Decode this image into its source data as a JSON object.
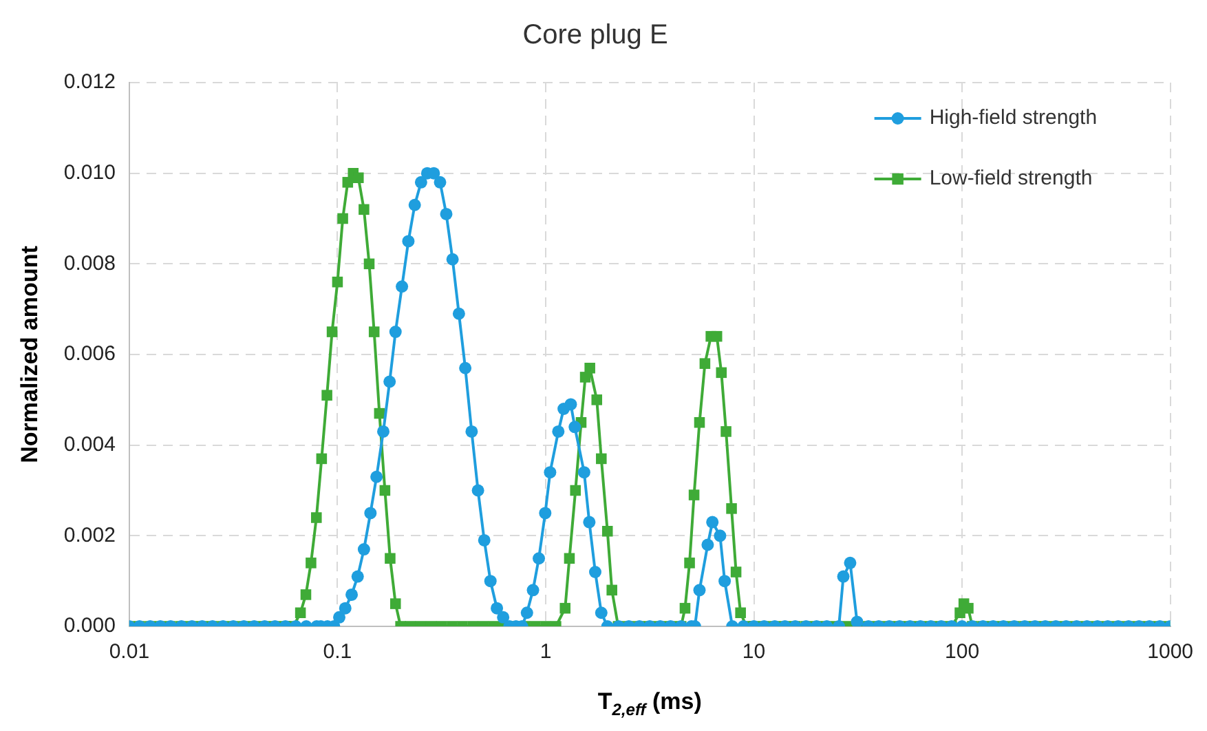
{
  "chart_data": {
    "type": "line",
    "title": "Core plug E",
    "xlabel": "T$_{2,eff}$ (ms)",
    "ylabel": "Normalized amount",
    "log": "x",
    "grid": true,
    "legend": "top right",
    "xlim": [
      0.01,
      1000
    ],
    "xticks": [
      0.01,
      0.1,
      1,
      10,
      100,
      1000
    ],
    "ylim": [
      0,
      0.012
    ],
    "yticks": [
      {
        "value": 0,
        "label": "0.000"
      },
      {
        "value": 0.002,
        "label": "0.002"
      },
      {
        "value": 0.004,
        "label": "0.004"
      },
      {
        "value": 0.006,
        "label": "0.006"
      },
      {
        "value": 0.008,
        "label": "0.008"
      },
      {
        "value": 0.01,
        "label": "0.010"
      },
      {
        "value": 0.012,
        "label": "0.012"
      }
    ],
    "series": [
      {
        "name": "High-field strength",
        "color": "#1f9ede",
        "marker": "circle",
        "x": [
          0.01,
          0.0112,
          0.0126,
          0.0141,
          0.0158,
          0.0178,
          0.02,
          0.0224,
          0.0251,
          0.0282,
          0.0316,
          0.0355,
          0.0398,
          0.0447,
          0.0501,
          0.0562,
          0.0631,
          0.0708,
          0.0794,
          0.0832,
          0.0895,
          0.0962,
          0.102,
          0.109,
          0.117,
          0.125,
          0.134,
          0.144,
          0.154,
          0.166,
          0.178,
          0.19,
          0.204,
          0.219,
          0.235,
          0.252,
          0.27,
          0.29,
          0.311,
          0.333,
          0.357,
          0.383,
          0.411,
          0.441,
          0.473,
          0.507,
          0.543,
          0.583,
          0.625,
          0.67,
          0.72,
          0.77,
          0.813,
          0.869,
          0.927,
          0.995,
          1.05,
          1.15,
          1.22,
          1.32,
          1.38,
          1.53,
          1.62,
          1.73,
          1.85,
          1.98,
          2.24,
          2.51,
          2.82,
          3.16,
          3.55,
          3.98,
          4.47,
          5.01,
          5.21,
          5.48,
          6,
          6.32,
          6.88,
          7.24,
          7.88,
          8.91,
          10,
          11.2,
          12.6,
          14.1,
          15.8,
          17.8,
          20,
          22.4,
          25.6,
          26.9,
          29,
          31.3,
          35.5,
          39.8,
          44.7,
          50.1,
          56.2,
          63.1,
          70.8,
          79.4,
          89.1,
          100,
          112,
          126,
          141,
          158,
          178,
          200,
          224,
          251,
          282,
          316,
          355,
          398,
          447,
          501,
          562,
          631,
          708,
          794,
          891,
          1000
        ],
        "values": [
          0,
          0,
          0,
          0,
          0,
          0,
          0,
          0,
          0,
          0,
          0,
          0,
          0,
          0,
          0,
          0,
          0,
          0,
          0,
          0,
          0,
          0,
          0.0002,
          0.0004,
          0.0007,
          0.0011,
          0.0017,
          0.0025,
          0.0033,
          0.0043,
          0.0054,
          0.0065,
          0.0075,
          0.0085,
          0.0093,
          0.0098,
          0.01,
          0.01,
          0.0098,
          0.0091,
          0.0081,
          0.0069,
          0.0057,
          0.0043,
          0.003,
          0.0019,
          0.001,
          0.0004,
          0.0002,
          0,
          0,
          0,
          0.0003,
          0.0008,
          0.0015,
          0.0025,
          0.0034,
          0.0043,
          0.0048,
          0.0049,
          0.0044,
          0.0034,
          0.0023,
          0.0012,
          0.0003,
          0,
          0,
          0,
          0,
          0,
          0,
          0,
          0,
          0,
          0,
          0.0008,
          0.0018,
          0.0023,
          0.002,
          0.001,
          0,
          0,
          0,
          0,
          0,
          0,
          0,
          0,
          0,
          0,
          0,
          0.0011,
          0.0014,
          0.0001,
          0,
          0,
          0,
          0,
          0,
          0,
          0,
          0,
          0,
          0,
          0,
          0,
          0,
          0,
          0,
          0,
          0,
          0,
          0,
          0,
          0,
          0,
          0,
          0,
          0,
          0,
          0,
          0,
          0,
          0
        ]
      },
      {
        "name": "Low-field strength",
        "color": "#3fab37",
        "marker": "square",
        "x": [
          0.01,
          0.0112,
          0.0126,
          0.0141,
          0.0158,
          0.0178,
          0.02,
          0.0224,
          0.0251,
          0.0282,
          0.0316,
          0.0355,
          0.0398,
          0.0447,
          0.0501,
          0.0562,
          0.0615,
          0.0664,
          0.0705,
          0.0746,
          0.0792,
          0.0839,
          0.089,
          0.0942,
          0.1,
          0.106,
          0.112,
          0.119,
          0.126,
          0.134,
          0.142,
          0.15,
          0.159,
          0.169,
          0.179,
          0.19,
          0.201,
          0.224,
          0.251,
          0.282,
          0.316,
          0.355,
          0.398,
          0.447,
          0.501,
          0.562,
          0.631,
          0.708,
          0.794,
          0.891,
          1,
          1.12,
          1.24,
          1.3,
          1.39,
          1.48,
          1.55,
          1.63,
          1.76,
          1.85,
          1.98,
          2.08,
          2.23,
          2.51,
          2.82,
          3.16,
          3.55,
          3.98,
          4.47,
          4.67,
          4.91,
          5.16,
          5.48,
          5.82,
          6.22,
          6.64,
          6.98,
          7.35,
          7.81,
          8.21,
          8.63,
          9.2,
          10,
          11.2,
          12.6,
          14.1,
          15.8,
          17.8,
          20,
          22.4,
          25.1,
          28.2,
          31.6,
          35.5,
          39.8,
          44.7,
          50.1,
          56.2,
          63.1,
          70.8,
          79.4,
          89.1,
          97.7,
          102,
          107,
          112,
          126,
          141,
          158,
          178,
          200,
          224,
          251,
          282,
          316,
          355,
          398,
          447,
          501,
          562,
          631,
          708,
          794,
          891,
          1000
        ],
        "values": [
          0,
          0,
          0,
          0,
          0,
          0,
          0,
          0,
          0,
          0,
          0,
          0,
          0,
          0,
          0,
          0,
          0,
          0.0003,
          0.0007,
          0.0014,
          0.0024,
          0.0037,
          0.0051,
          0.0065,
          0.0076,
          0.009,
          0.0098,
          0.01,
          0.0099,
          0.0092,
          0.008,
          0.0065,
          0.0047,
          0.003,
          0.0015,
          0.0005,
          0,
          0,
          0,
          0,
          0,
          0,
          0,
          0,
          0,
          0,
          0,
          0,
          0,
          0,
          0,
          0,
          0.0004,
          0.0015,
          0.003,
          0.0045,
          0.0055,
          0.0057,
          0.005,
          0.0037,
          0.0021,
          0.0008,
          0,
          0,
          0,
          0,
          0,
          0,
          0,
          0.0004,
          0.0014,
          0.0029,
          0.0045,
          0.0058,
          0.0064,
          0.0064,
          0.0056,
          0.0043,
          0.0026,
          0.0012,
          0.0003,
          0,
          0,
          0,
          0,
          0,
          0,
          0,
          0,
          0,
          0,
          0,
          0,
          0,
          0,
          0,
          0,
          0,
          0,
          0,
          0,
          0,
          0.0003,
          0.0005,
          0.0004,
          0,
          0,
          0,
          0,
          0,
          0,
          0,
          0,
          0,
          0,
          0,
          0,
          0,
          0,
          0,
          0,
          0,
          0,
          0,
          0
        ]
      }
    ]
  }
}
